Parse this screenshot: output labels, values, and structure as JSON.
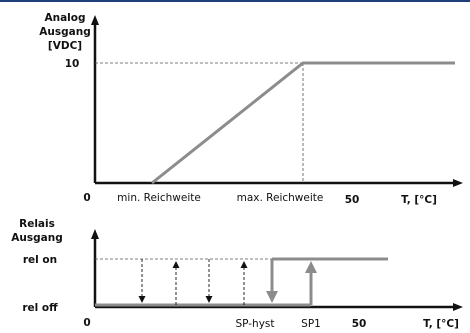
{
  "top_chart": {
    "ylabel": [
      "Analog",
      "Ausgang",
      "[VDC]"
    ],
    "ytick": "10",
    "origin": "0",
    "x_min_label": "min. Reichweite",
    "x_max_label": "max. Reichweite",
    "xtick": "50",
    "xlabel": "T, [°C]"
  },
  "bottom_chart": {
    "ylabel": [
      "Relais",
      "Ausgang"
    ],
    "level_on": "rel on",
    "level_off": "rel off",
    "origin": "0",
    "sp_hyst": "SP-hyst",
    "sp1": "SP1",
    "xtick": "50",
    "xlabel": "T, [°C]"
  },
  "colors": {
    "axis": "#111111",
    "curve": "#8c8c8c",
    "accent_bar": "#1f3f7a"
  }
}
